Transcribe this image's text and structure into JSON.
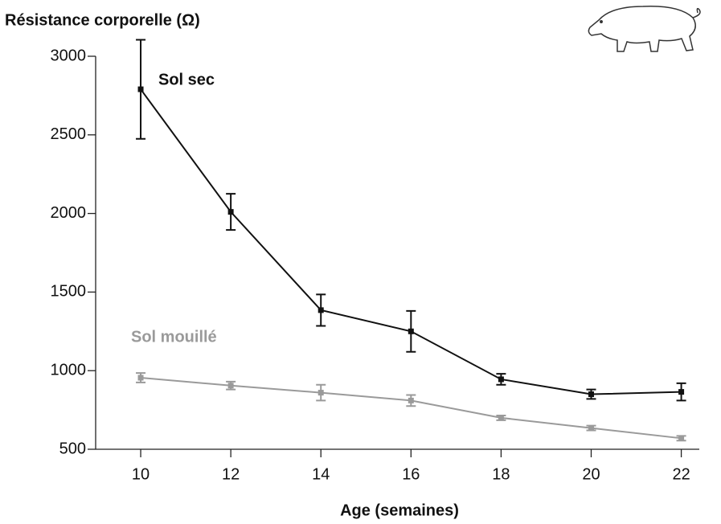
{
  "chart_data": {
    "type": "line",
    "title": "Résistance corporelle (Ω)",
    "x_label": "Age (semaines)",
    "x": [
      10,
      12,
      14,
      16,
      18,
      20,
      22
    ],
    "series": [
      {
        "name": "Sol sec",
        "color": "#111111",
        "values": [
          2790,
          2010,
          1385,
          1250,
          945,
          850,
          865
        ],
        "errors": [
          315,
          115,
          100,
          130,
          35,
          30,
          55
        ]
      },
      {
        "name": "Sol mouillé",
        "color": "#9a9a9a",
        "values": [
          955,
          905,
          860,
          810,
          700,
          635,
          570
        ],
        "errors": [
          30,
          25,
          50,
          35,
          15,
          15,
          15
        ]
      }
    ],
    "xlim": [
      9,
      22.4
    ],
    "xticks": [
      10,
      12,
      14,
      16,
      18,
      20,
      22
    ],
    "ylim": [
      500,
      3000
    ],
    "yticks": [
      500,
      1000,
      1500,
      2000,
      2500,
      3000
    ]
  }
}
